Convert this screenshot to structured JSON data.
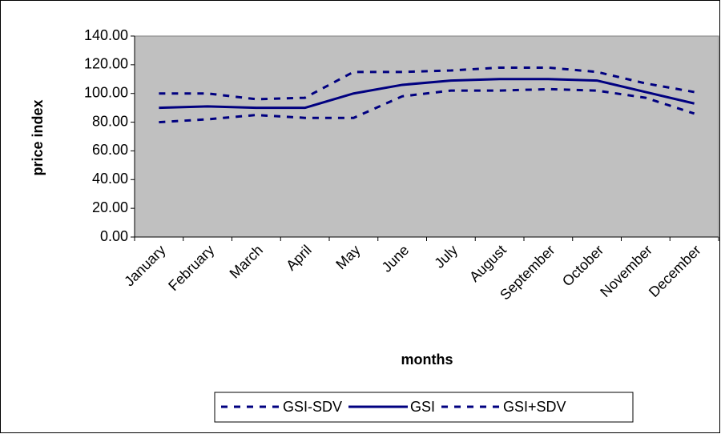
{
  "chart_data": {
    "type": "line",
    "xlabel": "months",
    "ylabel": "price index",
    "categories": [
      "January",
      "February",
      "March",
      "April",
      "May",
      "June",
      "July",
      "August",
      "September",
      "October",
      "November",
      "December"
    ],
    "series": [
      {
        "name": "GSI-SDV",
        "color": "#000080",
        "style": "dashed",
        "values": [
          80,
          82,
          85,
          83,
          83,
          98,
          102,
          102,
          103,
          102,
          97,
          86
        ]
      },
      {
        "name": "GSI",
        "color": "#000080",
        "style": "solid",
        "values": [
          90,
          91,
          90,
          90,
          100,
          106,
          109,
          110,
          110,
          109,
          101,
          93
        ]
      },
      {
        "name": "GSI+SDV",
        "color": "#000080",
        "style": "dashed",
        "values": [
          100,
          100,
          96,
          97,
          115,
          115,
          116,
          118,
          118,
          115,
          107,
          101
        ]
      }
    ],
    "ylim": [
      0,
      140
    ],
    "yticks": [
      {
        "value": 0,
        "label": "0.00"
      },
      {
        "value": 20,
        "label": "20.00"
      },
      {
        "value": 40,
        "label": "40.00"
      },
      {
        "value": 60,
        "label": "60.00"
      },
      {
        "value": 80,
        "label": "80.00"
      },
      {
        "value": 100,
        "label": "100.00"
      },
      {
        "value": 120,
        "label": "120.00"
      },
      {
        "value": 140,
        "label": "140.00"
      }
    ],
    "plot_background": "#c0c0c0",
    "legend": "bottom"
  }
}
